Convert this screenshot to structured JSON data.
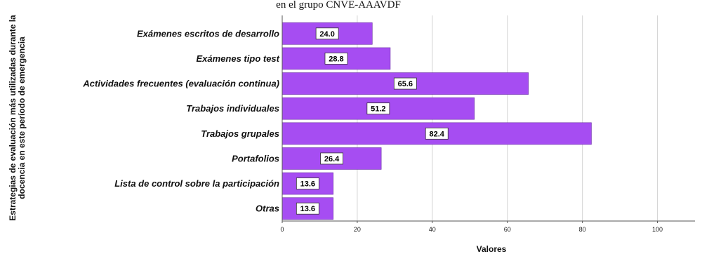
{
  "chart_data": {
    "type": "bar",
    "orientation": "horizontal",
    "title": "en el grupo CNVE-AAAVDF",
    "categories": [
      "Exámenes escritos de desarrollo",
      "Exámenes tipo test",
      "Actividades frecuentes (evaluación continua)",
      "Trabajos individuales",
      "Trabajos grupales",
      "Portafolios",
      "Lista de control sobre la participación",
      "Otras"
    ],
    "values": [
      24.0,
      28.8,
      65.6,
      51.2,
      82.4,
      26.4,
      13.6,
      13.6
    ],
    "data_labels": [
      "24.0",
      "28.8",
      "65.6",
      "51.2",
      "82.4",
      "26.4",
      "13.6",
      "13.6"
    ],
    "xlabel": "Valores",
    "ylabel_lines": [
      "Estrategias de evaluación más utilizadas durante la",
      "docencia en este período de emergencia"
    ],
    "xlim": [
      0,
      110
    ],
    "xticks": [
      0,
      20,
      40,
      60,
      80,
      100
    ],
    "xtick_labels": [
      "0",
      "20",
      "40",
      "60",
      "80",
      "100"
    ],
    "grid": "vertical",
    "bar_color": "#a64df2"
  }
}
